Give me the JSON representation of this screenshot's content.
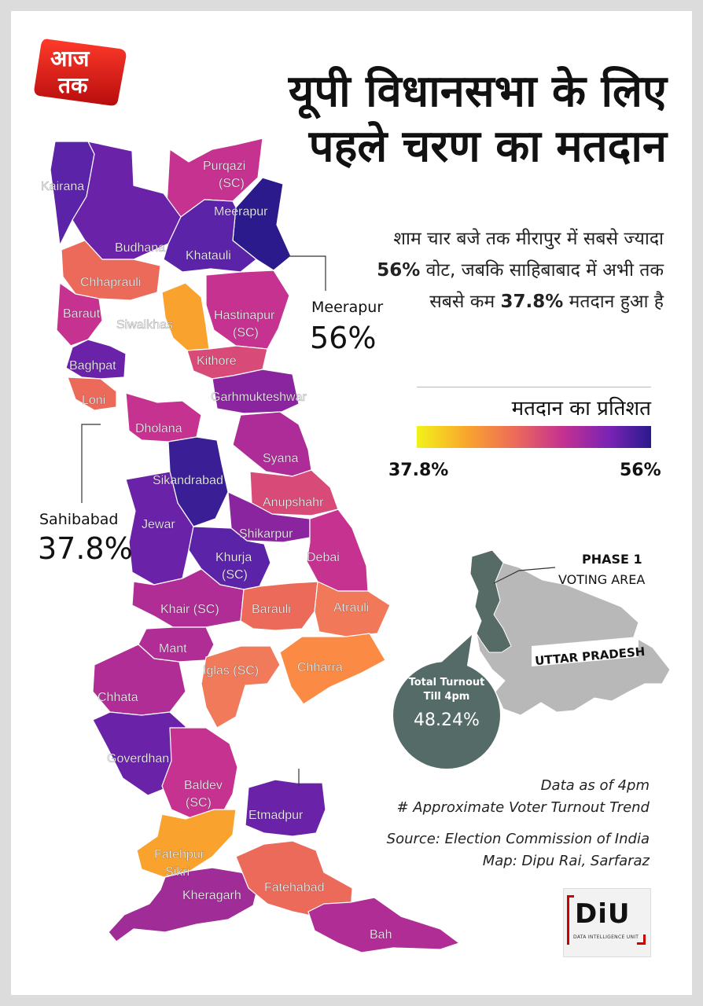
{
  "logo_text": [
    "आज",
    "तक"
  ],
  "title": [
    "यूपी विधानसभा के लिए",
    "पहले चरण का मतदान"
  ],
  "description": {
    "part1": "शाम चार बजे तक मीरापुर में सबसे ज्यादा ",
    "high": "56%",
    "part2": " वोट, जबकि साहिबाबाद में अभी तक सबसे कम ",
    "low": "37.8%",
    "part3": " मतदान हुआ है"
  },
  "legend": {
    "title": "मतदान का प्रतिशत",
    "min_label": "37.8%",
    "max_label": "56%",
    "colors": [
      "#f2f21a",
      "#f9a32e",
      "#ec6a5a",
      "#c53290",
      "#7a23b4",
      "#2a1a8c"
    ]
  },
  "callouts": {
    "top": {
      "name": "Meerapur",
      "value": "56%"
    },
    "bottom": {
      "name": "Sahibabad",
      "value": "37.8%"
    }
  },
  "constituencies": [
    {
      "name": "Kairana",
      "color": "#5a23a8"
    },
    {
      "name": "Purqazi",
      "sub": "(SC)",
      "color": "#c53290"
    },
    {
      "name": "Meerapur",
      "color": "#2a1a8c"
    },
    {
      "name": "Budhana",
      "color": "#6a22a8"
    },
    {
      "name": "Khatauli",
      "color": "#5a23a8"
    },
    {
      "name": "Chhaprauli",
      "color": "#ec6a5a"
    },
    {
      "name": "Baraut",
      "color": "#c53290"
    },
    {
      "name": "Siwalkhas",
      "color": "#f9a32e"
    },
    {
      "name": "Hastinapur",
      "sub": "(SC)",
      "color": "#c53290"
    },
    {
      "name": "Baghpat",
      "color": "#6a22a8"
    },
    {
      "name": "Kithore",
      "color": "#d84a78"
    },
    {
      "name": "Loni",
      "color": "#ec6a5a"
    },
    {
      "name": "Garhmukteshwar",
      "color": "#8a259f"
    },
    {
      "name": "Dholana",
      "color": "#c53290"
    },
    {
      "name": "Syana",
      "color": "#ad2c97"
    },
    {
      "name": "Sikandrabad",
      "color": "#3a1e96"
    },
    {
      "name": "Anupshahr",
      "color": "#d84a78"
    },
    {
      "name": "Jewar",
      "color": "#6a22a8"
    },
    {
      "name": "Shikarpur",
      "color": "#8a259f"
    },
    {
      "name": "Debai",
      "color": "#c53290"
    },
    {
      "name": "Khurja",
      "sub": "(SC)",
      "color": "#5a23a8"
    },
    {
      "name": "Khair (SC)",
      "color": "#b12d96"
    },
    {
      "name": "Barauli",
      "color": "#ec6a5a"
    },
    {
      "name": "Atrauli",
      "color": "#f2785a"
    },
    {
      "name": "Mant",
      "color": "#b12d96"
    },
    {
      "name": "Iglas (SC)",
      "color": "#f07a5a"
    },
    {
      "name": "Chharra",
      "color": "#fb8a44"
    },
    {
      "name": "Chhata",
      "color": "#b12d96"
    },
    {
      "name": "Goverdhan",
      "color": "#6a22a8"
    },
    {
      "name": "Baldev",
      "sub": "(SC)",
      "color": "#c53290"
    },
    {
      "name": "Etmadpur",
      "color": "#6a22a8"
    },
    {
      "name": "Fatehpur",
      "sub": "Sikri",
      "color": "#f9a32e"
    },
    {
      "name": "Kheragarh",
      "color": "#a02c98"
    },
    {
      "name": "Fatehabad",
      "color": "#ec6a5a"
    },
    {
      "name": "Bah",
      "color": "#b12d96"
    }
  ],
  "inset": {
    "phase_label": "PHASE 1",
    "voting_label": "VOTING AREA",
    "state_label": "UTTAR PRADESH",
    "turnout_label": [
      "Total Turnout",
      "Till 4pm"
    ],
    "turnout_value": "48.24%"
  },
  "notes": [
    "Data as of 4pm",
    "# Approximate Voter Turnout Trend",
    "Source: Election Commission of India",
    "Map: Dipu Rai, Sarfaraz"
  ],
  "brand": {
    "name": "DiU",
    "sub": "DATA INTELLIGENCE UNIT"
  }
}
